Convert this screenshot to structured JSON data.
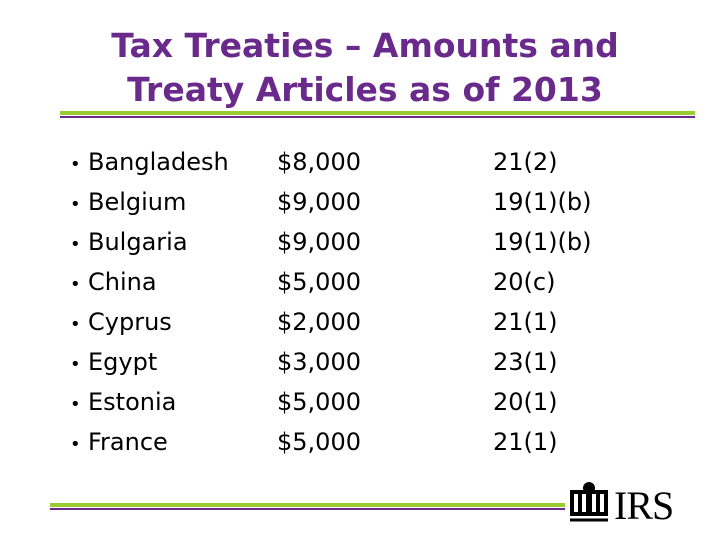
{
  "header": {
    "title": "Tax Treaties – Amounts and Treaty Articles as of 2013"
  },
  "table": {
    "rows": [
      [
        "Bangladesh",
        "$8,000",
        "21(2)"
      ],
      [
        "Belgium",
        "$9,000",
        "19(1)(b)"
      ],
      [
        "Bulgaria",
        "$9,000",
        "19(1)(b)"
      ],
      [
        "China",
        "$5,000",
        "20(c)"
      ],
      [
        "Cyprus",
        "$2,000",
        "21(1)"
      ],
      [
        "Egypt",
        "$3,000",
        "23(1)"
      ],
      [
        "Estonia",
        "$5,000",
        "20(1)"
      ],
      [
        "France",
        "$5,000",
        "21(1)"
      ]
    ]
  },
  "logo": {
    "text": "IRS"
  }
}
